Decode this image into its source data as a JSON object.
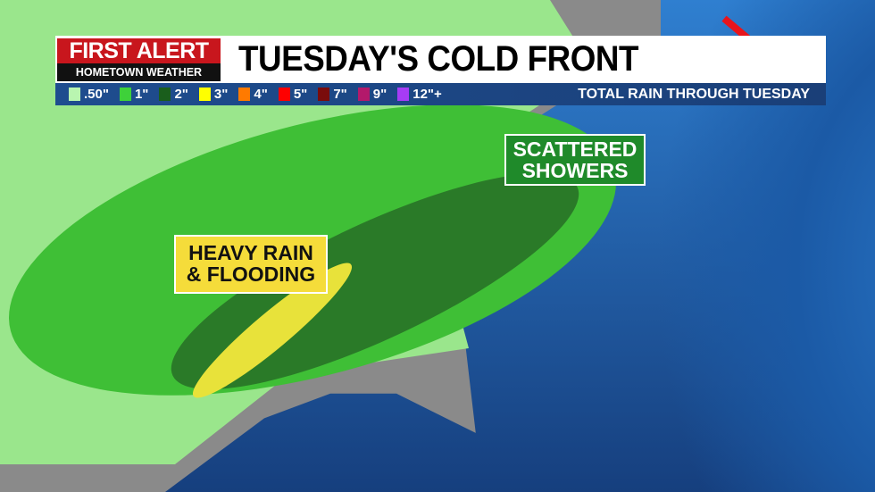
{
  "header": {
    "logo_top": "FIRST ALERT",
    "logo_bottom": "HOMETOWN WEATHER",
    "title": "TUESDAY'S COLD FRONT"
  },
  "legend": {
    "title": "TOTAL RAIN THROUGH TUESDAY",
    "items": [
      {
        "label": ".50\"",
        "color": "#b9f5b0"
      },
      {
        "label": "1\"",
        "color": "#3ed13a"
      },
      {
        "label": "2\"",
        "color": "#1a5e1c"
      },
      {
        "label": "3\"",
        "color": "#ffff00"
      },
      {
        "label": "4\"",
        "color": "#ff7a00"
      },
      {
        "label": "5\"",
        "color": "#ff0000"
      },
      {
        "label": "7\"",
        "color": "#7a0c0c"
      },
      {
        "label": "9\"",
        "color": "#b3196b"
      },
      {
        "label": "12\"+",
        "color": "#a63cf5"
      }
    ]
  },
  "map": {
    "labels": {
      "heavy_rain": "HEAVY RAIN\n& FLOODING",
      "scattered": "SCATTERED\nSHOWERS"
    },
    "colors": {
      "land": "#8d8d8d",
      "ocean": "#1f5fae",
      "front": "#e8141b"
    }
  }
}
